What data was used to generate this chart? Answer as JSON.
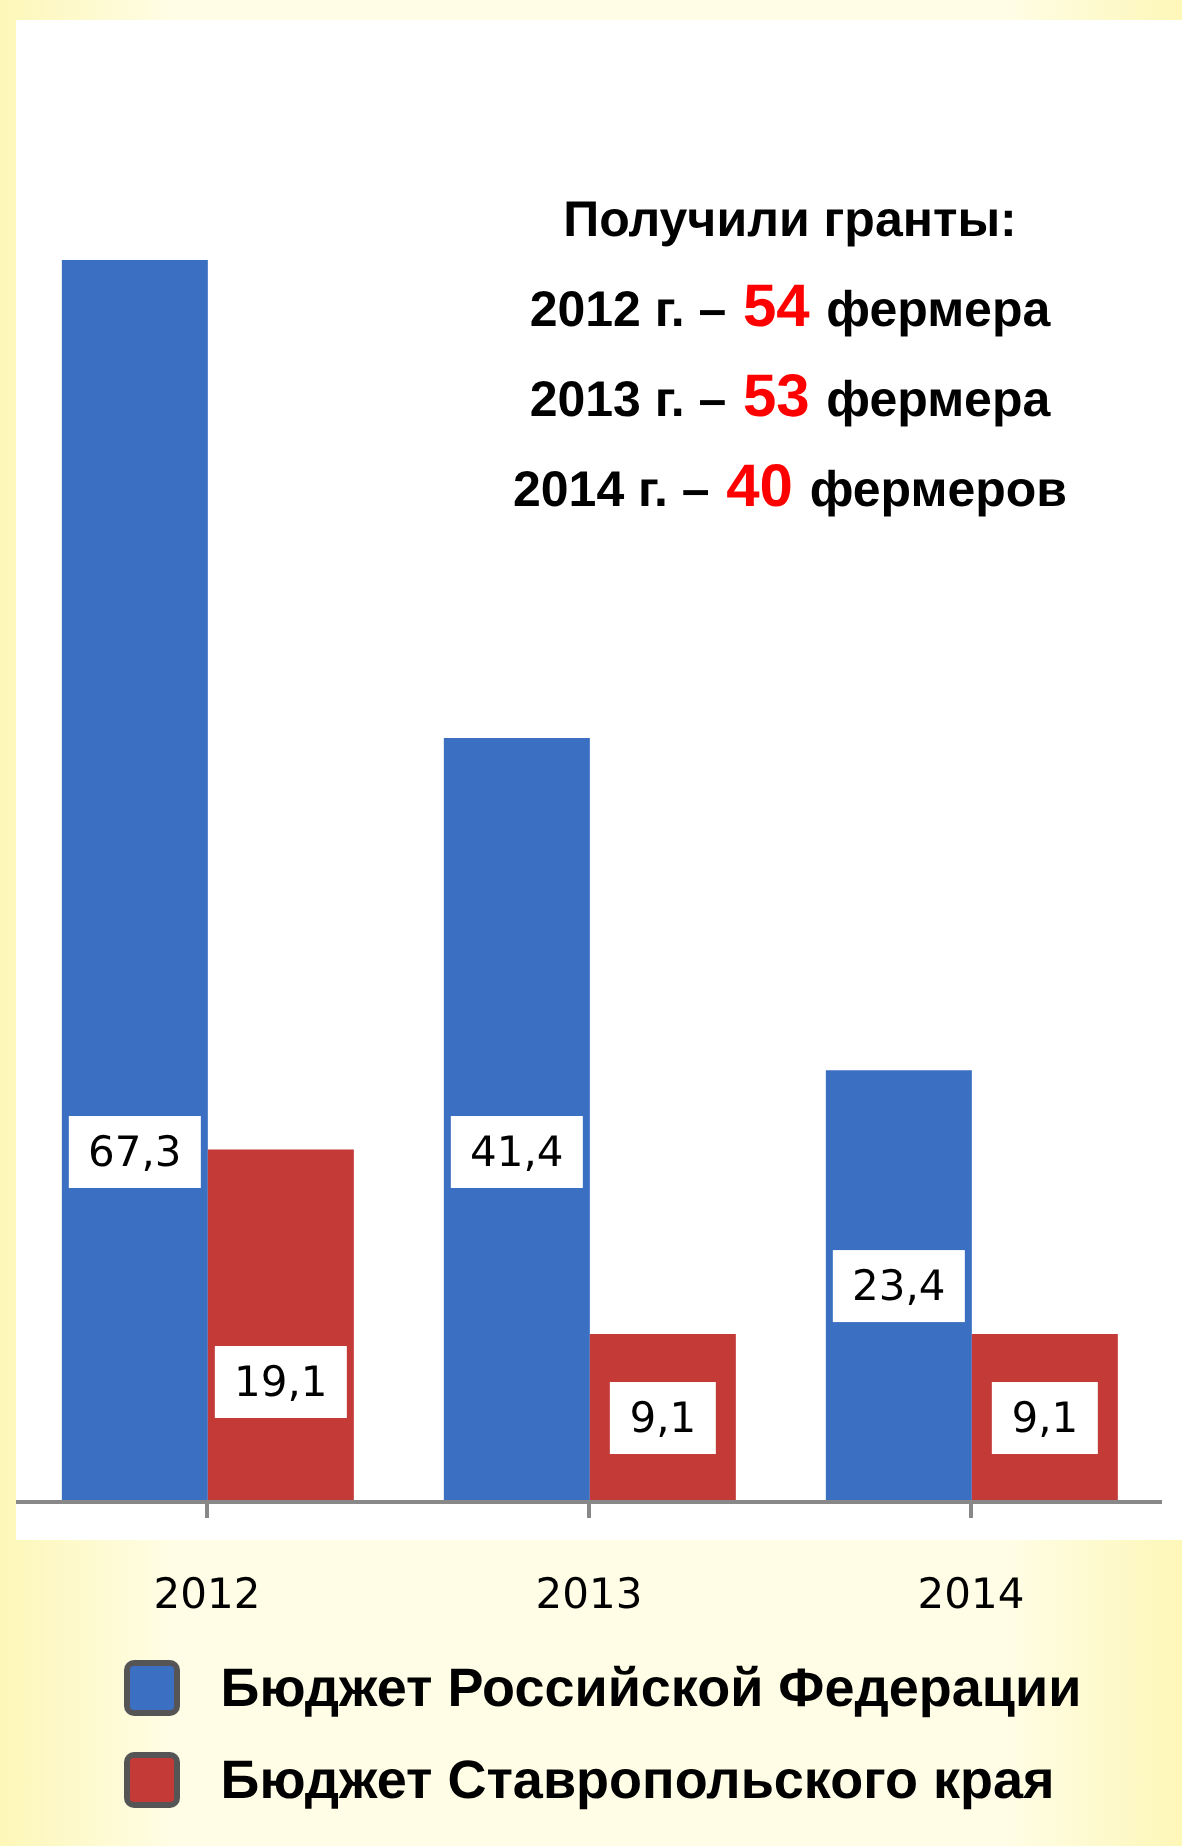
{
  "chart_data": {
    "type": "bar",
    "categories": [
      "2012",
      "2013",
      "2014"
    ],
    "series": [
      {
        "name": "Бюджет Российской Федерации",
        "color": "#3b6fc2",
        "values": [
          67.3,
          41.4,
          23.4
        ],
        "value_labels": [
          "67,3",
          "41,4",
          "23,4"
        ]
      },
      {
        "name": "Бюджет Ставропольского края",
        "color": "#c43a36",
        "values": [
          19.1,
          9.1,
          9.1
        ],
        "value_labels": [
          "19,1",
          "9,1",
          "9,1"
        ]
      }
    ],
    "annotations": [
      "Получили гранты:",
      "2012 г. – 54 фермера",
      "2013 г. – 53 фермера",
      "2014 г. – 40 фермеров"
    ],
    "legend": "bottom",
    "grid": false
  }
}
